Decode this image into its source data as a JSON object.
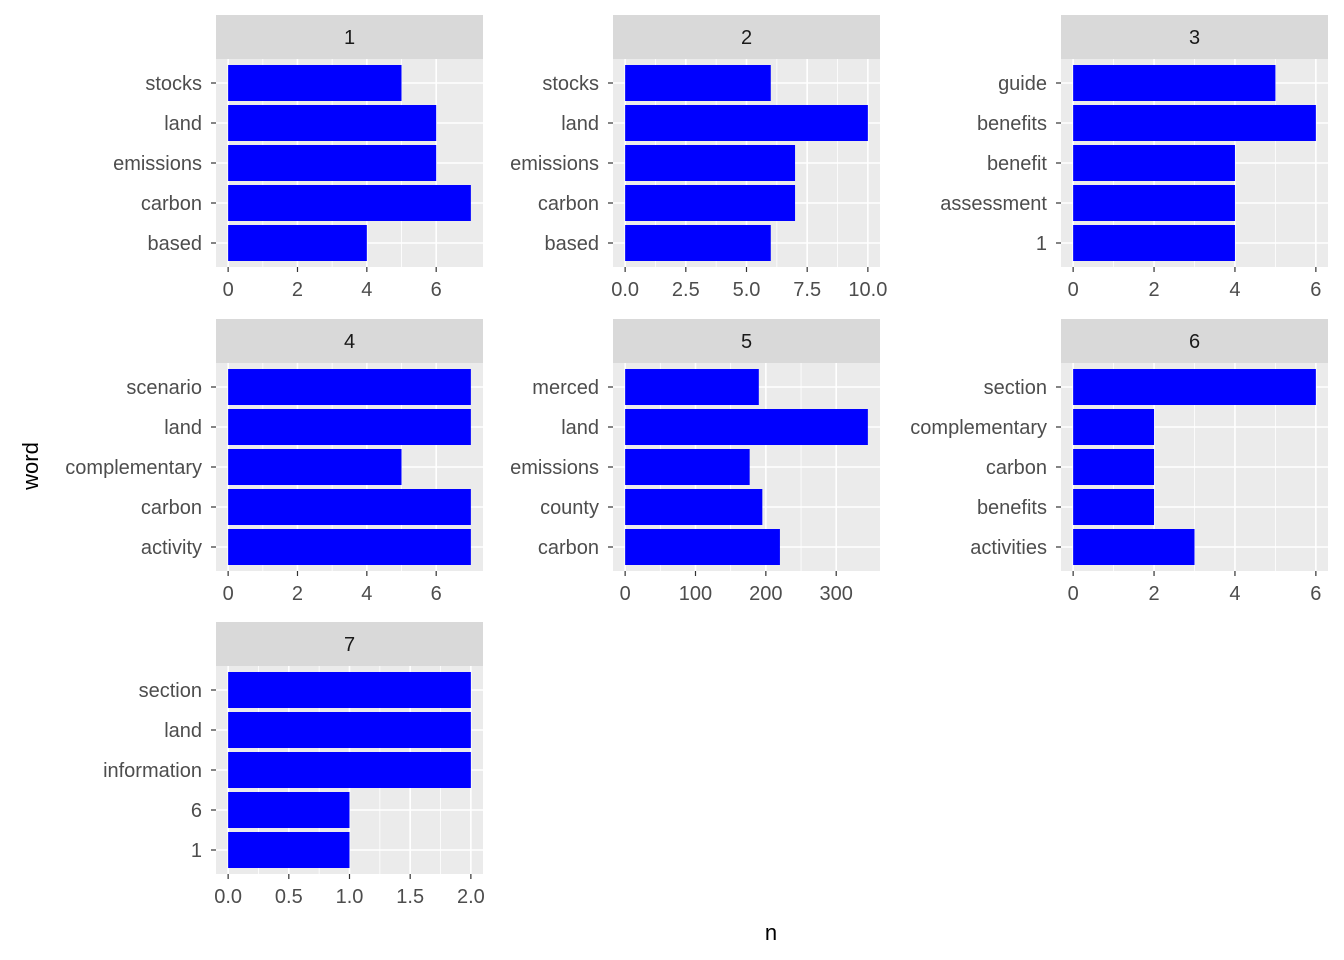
{
  "chart_data": {
    "type": "bar",
    "orientation": "horizontal",
    "layout": "facet grid, 3 columns",
    "xlabel": "n",
    "ylabel": "word",
    "bar_color": "#0000FF",
    "panel_background": "#EBEBEB",
    "strip_background": "#D9D9D9",
    "grid": true,
    "panels": [
      {
        "title": "1",
        "categories": [
          "stocks",
          "land",
          "emissions",
          "carbon",
          "based"
        ],
        "values": [
          5,
          6,
          6,
          7,
          4
        ],
        "xlim": [
          -0.35,
          7.35
        ],
        "xticks": [
          0,
          2,
          4,
          6
        ],
        "xtick_labels": [
          "0",
          "2",
          "4",
          "6"
        ]
      },
      {
        "title": "2",
        "categories": [
          "stocks",
          "land",
          "emissions",
          "carbon",
          "based"
        ],
        "values": [
          6,
          10,
          7,
          7,
          6
        ],
        "xlim": [
          -0.5,
          10.5
        ],
        "xticks": [
          0,
          2.5,
          5,
          7.5,
          10
        ],
        "xtick_labels": [
          "0.0",
          "2.5",
          "5.0",
          "7.5",
          "10.0"
        ]
      },
      {
        "title": "3",
        "categories": [
          "guide",
          "benefits",
          "benefit",
          "assessment",
          "1"
        ],
        "values": [
          5,
          6,
          4,
          4,
          4
        ],
        "xlim": [
          -0.3,
          6.3
        ],
        "xticks": [
          0,
          2,
          4,
          6
        ],
        "xtick_labels": [
          "0",
          "2",
          "4",
          "6"
        ]
      },
      {
        "title": "4",
        "categories": [
          "scenario",
          "land",
          "complementary",
          "carbon",
          "activity"
        ],
        "values": [
          7,
          7,
          5,
          7,
          7
        ],
        "xlim": [
          -0.35,
          7.35
        ],
        "xticks": [
          0,
          2,
          4,
          6
        ],
        "xtick_labels": [
          "0",
          "2",
          "4",
          "6"
        ]
      },
      {
        "title": "5",
        "categories": [
          "merced",
          "land",
          "emissions",
          "county",
          "carbon"
        ],
        "values": [
          190,
          345,
          177,
          195,
          220
        ],
        "xlim": [
          -17.25,
          362.25
        ],
        "xticks": [
          0,
          100,
          200,
          300
        ],
        "xtick_labels": [
          "0",
          "100",
          "200",
          "300"
        ]
      },
      {
        "title": "6",
        "categories": [
          "section",
          "complementary",
          "carbon",
          "benefits",
          "activities"
        ],
        "values": [
          6,
          2,
          2,
          2,
          3
        ],
        "xlim": [
          -0.3,
          6.3
        ],
        "xticks": [
          0,
          2,
          4,
          6
        ],
        "xtick_labels": [
          "0",
          "2",
          "4",
          "6"
        ]
      },
      {
        "title": "7",
        "categories": [
          "section",
          "land",
          "information",
          "6",
          "1"
        ],
        "values": [
          2,
          2,
          2,
          1,
          1
        ],
        "xlim": [
          -0.1,
          2.1
        ],
        "xticks": [
          0,
          0.5,
          1,
          1.5,
          2
        ],
        "xtick_labels": [
          "0.0",
          "0.5",
          "1.0",
          "1.5",
          "2.0"
        ]
      }
    ]
  }
}
